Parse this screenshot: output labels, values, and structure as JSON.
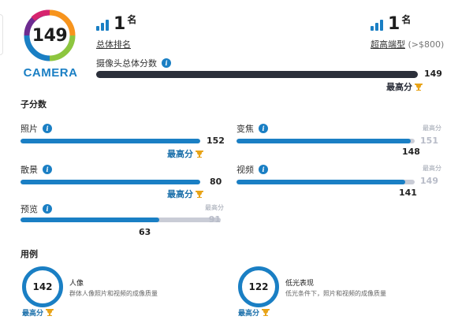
{
  "badge": {
    "score": "149",
    "category": "CAMERA"
  },
  "ranks": {
    "global": {
      "value": "1",
      "unit": "名",
      "caption": "总体排名"
    },
    "segment": {
      "value": "1",
      "unit": "名",
      "caption": "超高端型",
      "caption_extra": " (>$800)"
    }
  },
  "overall": {
    "label": "摄像头总体分数",
    "value": "149",
    "best_label": "最高分"
  },
  "subscores_title": "子分数",
  "subscores": {
    "photo": {
      "label": "照片",
      "value": "152",
      "max_caption": "",
      "max_value": "",
      "fraction": 1.0,
      "best_label": "最高分"
    },
    "zoom": {
      "label": "变焦",
      "value": "148",
      "max_caption": "最高分",
      "max_value": "151",
      "fraction": 0.98
    },
    "bokeh": {
      "label": "散景",
      "value": "80",
      "max_caption": "",
      "max_value": "",
      "fraction": 1.0,
      "best_label": "最高分"
    },
    "video": {
      "label": "视频",
      "value": "141",
      "max_caption": "最高分",
      "max_value": "149",
      "fraction": 0.946
    },
    "preview": {
      "label": "预览",
      "value": "63",
      "max_caption": "最高分",
      "max_value": "91",
      "fraction": 0.692
    }
  },
  "usecases_title": "用例",
  "usecases": {
    "portrait": {
      "score": "142",
      "title": "人像",
      "desc": "群体人像照片和视频的成像质量",
      "best_label": "最高分"
    },
    "lowlight": {
      "score": "122",
      "title": "低光表现",
      "desc": "低光条件下，照片和视频的成像质量",
      "best_label": "最高分"
    }
  },
  "colors": {
    "accent": "#1a7fc4",
    "dark_bar": "#2b2f3a",
    "track": "#c9ccd6",
    "trophy": "#e8a317"
  }
}
